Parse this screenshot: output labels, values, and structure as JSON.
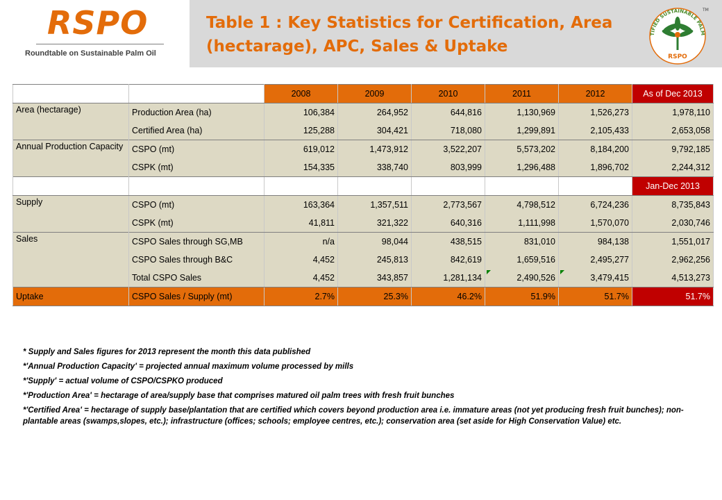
{
  "header": {
    "logo": "RSPO",
    "logo_subtitle": "Roundtable on Sustainable Palm Oil",
    "title": "Table 1 : Key Statistics for Certification, Area (hectarage), APC, Sales & Uptake",
    "seal_text_top": "CERTIFIED SUSTAINABLE PALM OIL",
    "seal_text_bottom": "RSPO",
    "seal_tm": "TM"
  },
  "colors": {
    "accent_orange": "#e36c0a",
    "accent_red": "#c00000",
    "beige": "#ddd9c4",
    "header_grey": "#d9d9d9"
  },
  "table": {
    "years": [
      "2008",
      "2009",
      "2010",
      "2011",
      "2012"
    ],
    "last_header": "As of Dec 2013",
    "separator_label": "Jan-Dec 2013",
    "rows": [
      {
        "category": "Area (hectarage)",
        "metric": "Production Area (ha)",
        "values": [
          "106,384",
          "264,952",
          "644,816",
          "1,130,969",
          "1,526,273",
          "1,978,110"
        ]
      },
      {
        "category": "",
        "metric": "Certified Area (ha)",
        "values": [
          "125,288",
          "304,421",
          "718,080",
          "1,299,891",
          "2,105,433",
          "2,653,058"
        ]
      },
      {
        "category": "Annual Production Capacity",
        "metric": "CSPO (mt)",
        "values": [
          "619,012",
          "1,473,912",
          "3,522,207",
          "5,573,202",
          "8,184,200",
          "9,792,185"
        ]
      },
      {
        "category": "",
        "metric": "CSPK (mt)",
        "values": [
          "154,335",
          "338,740",
          "803,999",
          "1,296,488",
          "1,896,702",
          "2,244,312"
        ]
      },
      {
        "category": "Supply",
        "metric": "CSPO (mt)",
        "values": [
          "163,364",
          "1,357,511",
          "2,773,567",
          "4,798,512",
          "6,724,236",
          "8,735,843"
        ]
      },
      {
        "category": "",
        "metric": "CSPK (mt)",
        "values": [
          "41,811",
          "321,322",
          "640,316",
          "1,111,998",
          "1,570,070",
          "2,030,746"
        ]
      },
      {
        "category": "Sales",
        "metric": "CSPO Sales through SG,MB",
        "values": [
          "n/a",
          "98,044",
          "438,515",
          "831,010",
          "984,138",
          "1,551,017"
        ]
      },
      {
        "category": "",
        "metric": "CSPO Sales through B&C",
        "values": [
          "4,452",
          "245,813",
          "842,619",
          "1,659,516",
          "2,495,277",
          "2,962,256"
        ]
      },
      {
        "category": "",
        "metric": "Total CSPO Sales",
        "values": [
          "4,452",
          "343,857",
          "1,281,134",
          "2,490,526",
          "3,479,415",
          "4,513,273"
        ]
      },
      {
        "category": "Uptake",
        "metric": "CSPO Sales / Supply (mt)",
        "values": [
          "2.7%",
          "25.3%",
          "46.2%",
          "51.9%",
          "51.7%",
          "51.7%"
        ]
      }
    ]
  },
  "notes": [
    "* Supply and Sales figures for 2013 represent the month this data published",
    "*'Annual Production Capacity' = projected annual maximum volume processed by mills",
    "*'Supply' = actual volume of CSPO/CSPKO produced",
    "*'Production Area' = hectarage of area/supply base that comprises matured oil palm trees with fresh fruit bunches",
    "*'Certified Area' = hectarage of supply base/plantation that are certified which covers beyond production area i.e. immature areas (not yet producing fresh fruit bunches); non-plantable areas (swamps,slopes, etc.); infrastructure (offices; schools; employee centres, etc.); conservation area (set aside for High Conservation Value) etc."
  ]
}
